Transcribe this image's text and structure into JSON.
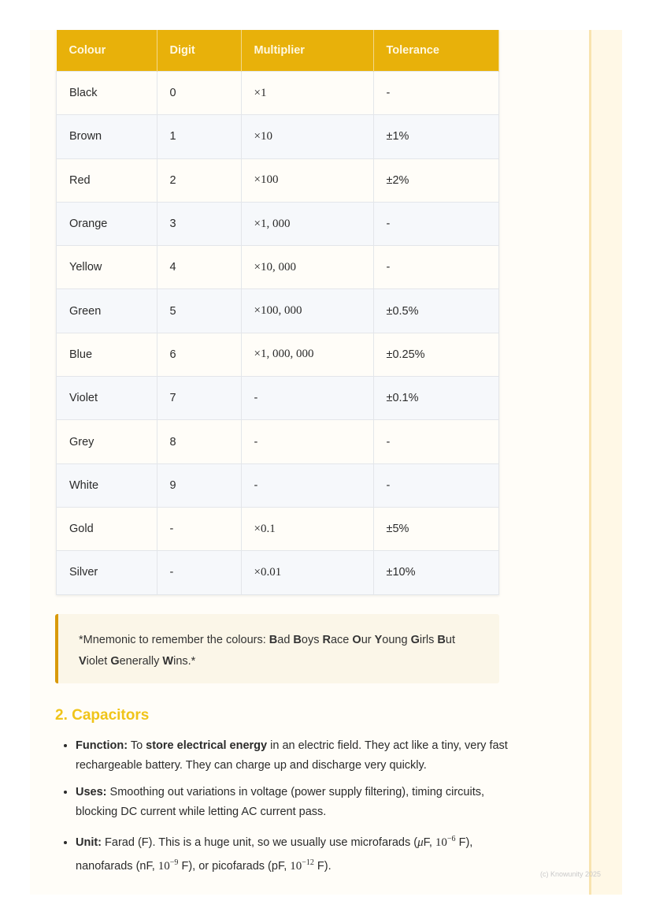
{
  "table": {
    "headers": [
      "Colour",
      "Digit",
      "Multiplier",
      "Tolerance"
    ],
    "rows": [
      [
        "Black",
        "0",
        "×1",
        "-"
      ],
      [
        "Brown",
        "1",
        "×10",
        "±1%"
      ],
      [
        "Red",
        "2",
        "×100",
        "±2%"
      ],
      [
        "Orange",
        "3",
        "×1, 000",
        "-"
      ],
      [
        "Yellow",
        "4",
        "×10, 000",
        "-"
      ],
      [
        "Green",
        "5",
        "×100, 000",
        "±0.5%"
      ],
      [
        "Blue",
        "6",
        "×1, 000, 000",
        "±0.25%"
      ],
      [
        "Violet",
        "7",
        "-",
        "±0.1%"
      ],
      [
        "Grey",
        "8",
        "-",
        "-"
      ],
      [
        "White",
        "9",
        "-",
        "-"
      ],
      [
        "Gold",
        "-",
        "×0.1",
        "±5%"
      ],
      [
        "Silver",
        "-",
        "×0.01",
        "±10%"
      ]
    ]
  },
  "note": {
    "prefix": "*Mnemonic to remember the colours: ",
    "words": [
      [
        "B",
        "ad "
      ],
      [
        "B",
        "oys "
      ],
      [
        "R",
        "ace "
      ],
      [
        "O",
        "ur "
      ],
      [
        "Y",
        "oung "
      ],
      [
        "G",
        "irls "
      ],
      [
        "B",
        "ut "
      ],
      [
        "V",
        "iolet "
      ],
      [
        "G",
        "enerally "
      ],
      [
        "W",
        "ins.*"
      ]
    ]
  },
  "section": {
    "title": "2. Capacitors",
    "function": {
      "label": "Function:",
      "t1": " To ",
      "bold": "store electrical energy",
      "t2": " in an electric field. They act like a tiny, very fast rechargeable battery. They can charge up and discharge very quickly."
    },
    "uses": {
      "label": "Uses:",
      "text": " Smoothing out variations in voltage (power supply filtering), timing circuits, blocking DC current while letting AC current pass."
    },
    "unit": {
      "label": "Unit:",
      "t1": " Farad (F). This is a huge unit, so we usually use microfarads (",
      "mu": "μ",
      "t2": "F, ",
      "ten": "10",
      "e1": "−6",
      "t3": " F), nanofarads (nF, ",
      "e2": "−9",
      "t4": " F), or picofarads (pF, ",
      "e3": "−12",
      "t5": " F)."
    }
  },
  "footer": {
    "copyright": "(c) Knowunity 2025"
  },
  "colors": {
    "header": "#e8b10a",
    "accent": "#f0c419",
    "note_border": "#d99a0b"
  }
}
